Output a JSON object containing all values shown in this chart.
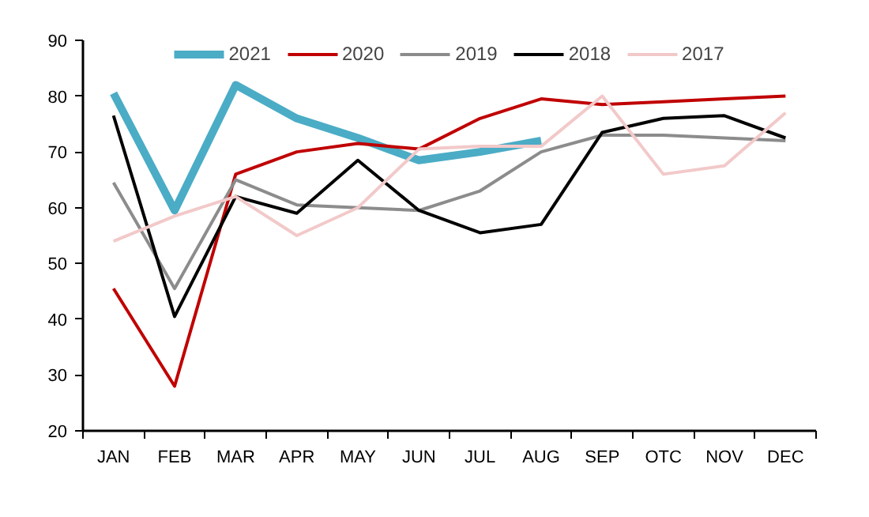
{
  "chart_data": {
    "type": "line",
    "categories": [
      "JAN",
      "FEB",
      "MAR",
      "APR",
      "MAY",
      "JUN",
      "JUL",
      "AUG",
      "SEP",
      "OTC",
      "NOV",
      "DEC"
    ],
    "ylim": [
      20,
      90
    ],
    "yticks": [
      20,
      30,
      40,
      50,
      60,
      70,
      80,
      90
    ],
    "grid": false,
    "legend": "top",
    "marker": "none",
    "line_style": "solid",
    "series": [
      {
        "name": "2021",
        "color": "#4bacc6",
        "values": [
          80.5,
          59.5,
          82,
          76,
          72.5,
          68.5,
          70,
          72,
          null,
          null,
          null,
          null
        ]
      },
      {
        "name": "2020",
        "color": "#c00000",
        "values": [
          45.5,
          28,
          66,
          70,
          71.5,
          70.5,
          76,
          79.5,
          78.5,
          79,
          79.5,
          80
        ]
      },
      {
        "name": "2019",
        "color": "#8c8c8c",
        "values": [
          64.5,
          45.5,
          65,
          60.5,
          60,
          59.5,
          63,
          70,
          73,
          73,
          72.5,
          72
        ]
      },
      {
        "name": "2018",
        "color": "#000000",
        "values": [
          76.5,
          40.5,
          62,
          59,
          68.5,
          59.5,
          55.5,
          57,
          73.5,
          76,
          76.5,
          72.5
        ]
      },
      {
        "name": "2017",
        "color": "#f2c9c9",
        "values": [
          54,
          58.5,
          62,
          55,
          60,
          70.5,
          71,
          71,
          80,
          66,
          67.5,
          77
        ]
      }
    ]
  }
}
